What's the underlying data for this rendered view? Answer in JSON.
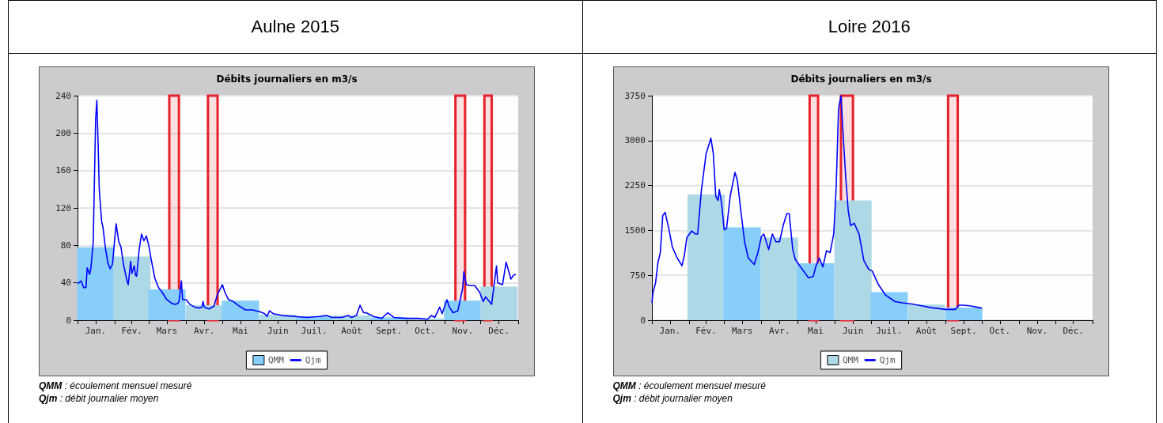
{
  "chart_data": [
    {
      "type": "bar",
      "title": "Aulne 2015",
      "subtitle": "Débits journaliers en m3/s",
      "xlim": [
        "2015-01-01",
        "2016-01-01"
      ],
      "xticks": [
        {
          "value": "2015-01-01",
          "label": null
        },
        {
          "value": "2015-01-16",
          "label": "Jan."
        },
        {
          "value": "2015-02-01",
          "label": null
        },
        {
          "value": "2015-02-15",
          "label": "Fév."
        },
        {
          "value": "2015-03-01",
          "label": null
        },
        {
          "value": "2015-03-16",
          "label": "Mars"
        },
        {
          "value": "2015-04-01",
          "label": null
        },
        {
          "value": "2015-04-16",
          "label": "Avr."
        },
        {
          "value": "2015-05-01",
          "label": null
        },
        {
          "value": "2015-05-16",
          "label": "Mai"
        },
        {
          "value": "2015-06-01",
          "label": null
        },
        {
          "value": "2015-06-16",
          "label": "Juin"
        },
        {
          "value": "2015-07-01",
          "label": null
        },
        {
          "value": "2015-07-16",
          "label": "Juil."
        },
        {
          "value": "2015-08-01",
          "label": null
        },
        {
          "value": "2015-08-16",
          "label": "Août"
        },
        {
          "value": "2015-09-01",
          "label": null
        },
        {
          "value": "2015-09-16",
          "label": "Sept."
        },
        {
          "value": "2015-10-01",
          "label": null
        },
        {
          "value": "2015-10-16",
          "label": "Oct."
        },
        {
          "value": "2015-11-01",
          "label": null
        },
        {
          "value": "2015-11-16",
          "label": "Nov."
        },
        {
          "value": "2015-12-01",
          "label": null
        },
        {
          "value": "2015-12-16",
          "label": "Déc."
        },
        {
          "value": "2016-01-01",
          "label": null
        }
      ],
      "ylim": [
        0,
        240
      ],
      "yticks": [
        0,
        40,
        80,
        120,
        160,
        200,
        240
      ],
      "grid": "y",
      "legend": "bottom",
      "marker": "none",
      "series": [
        {
          "name": "QMM",
          "x": [
            "2015-01-16",
            "2015-02-15",
            "2015-03-16",
            "2015-04-16",
            "2015-05-16",
            "2015-06-16",
            "2015-07-16",
            "2015-08-16",
            "2015-09-16",
            "2015-10-16",
            "2015-11-16",
            "2015-12-16"
          ],
          "colors": [
            "#87cefa",
            "#add8e6",
            "#87cefa",
            "#add8e6",
            "#87cefa",
            "#add8e6",
            "#87cefa",
            "#add8e6",
            "#87cefa",
            "#add8e6",
            "#87cefa",
            "#add8e6"
          ],
          "values": [
            78,
            68,
            33,
            16,
            21,
            6,
            4,
            5,
            3,
            2,
            21,
            36
          ]
        },
        {
          "type": "line",
          "name": "Qjm",
          "color": "#0000ff",
          "x": [
            "2015-01-01",
            "2015-01-04",
            "2015-01-06",
            "2015-01-08",
            "2015-01-09",
            "2015-01-11",
            "2015-01-12",
            "2015-01-14",
            "2015-01-15",
            "2015-01-16",
            "2015-01-17",
            "2015-01-18",
            "2015-01-19",
            "2015-01-21",
            "2015-01-22",
            "2015-01-24",
            "2015-01-26",
            "2015-01-28",
            "2015-01-30",
            "2015-02-01",
            "2015-02-02",
            "2015-02-04",
            "2015-02-06",
            "2015-02-08",
            "2015-02-11",
            "2015-02-12",
            "2015-02-14",
            "2015-02-15",
            "2015-02-17",
            "2015-02-18",
            "2015-02-19",
            "2015-02-21",
            "2015-02-23",
            "2015-02-25",
            "2015-02-27",
            "2015-03-01",
            "2015-03-03",
            "2015-03-06",
            "2015-03-09",
            "2015-03-12",
            "2015-03-16",
            "2015-03-20",
            "2015-03-23",
            "2015-03-25",
            "2015-03-26",
            "2015-03-28",
            "2015-03-29",
            "2015-04-01",
            "2015-04-04",
            "2015-04-08",
            "2015-04-12",
            "2015-04-14",
            "2015-04-15",
            "2015-04-16",
            "2015-04-20",
            "2015-04-24",
            "2015-04-27",
            "2015-05-01",
            "2015-05-03",
            "2015-05-06",
            "2015-05-10",
            "2015-05-14",
            "2015-05-20",
            "2015-05-26",
            "2015-06-01",
            "2015-06-05",
            "2015-06-07",
            "2015-06-09",
            "2015-06-12",
            "2015-06-20",
            "2015-06-30",
            "2015-07-10",
            "2015-07-20",
            "2015-07-26",
            "2015-07-31",
            "2015-08-08",
            "2015-08-13",
            "2015-08-16",
            "2015-08-20",
            "2015-08-23",
            "2015-08-26",
            "2015-08-28",
            "2015-09-03",
            "2015-09-10",
            "2015-09-15",
            "2015-09-20",
            "2015-09-30",
            "2015-10-10",
            "2015-10-18",
            "2015-10-21",
            "2015-10-24",
            "2015-10-28",
            "2015-10-30",
            "2015-11-03",
            "2015-11-05",
            "2015-11-08",
            "2015-11-12",
            "2015-11-16",
            "2015-11-17",
            "2015-11-19",
            "2015-11-22",
            "2015-11-26",
            "2015-11-30",
            "2015-12-03",
            "2015-12-05",
            "2015-12-08",
            "2015-12-10",
            "2015-12-14",
            "2015-12-15",
            "2015-12-19",
            "2015-12-22",
            "2015-12-24",
            "2015-12-26",
            "2015-12-28",
            "2015-12-30"
          ],
          "values": [
            39,
            42,
            35,
            35,
            56,
            49,
            55,
            83,
            150,
            215,
            235,
            190,
            140,
            105,
            100,
            78,
            62,
            55,
            60,
            90,
            103,
            85,
            78,
            60,
            42,
            38,
            63,
            50,
            58,
            48,
            47,
            75,
            92,
            85,
            90,
            80,
            65,
            45,
            35,
            30,
            22,
            18,
            17,
            18,
            20,
            42,
            22,
            22,
            17,
            14,
            13,
            14,
            20,
            14,
            12,
            15,
            28,
            38,
            30,
            22,
            20,
            16,
            11,
            11,
            9,
            7,
            4,
            10,
            7,
            5,
            4,
            3,
            4,
            5,
            3,
            3,
            5,
            3,
            5,
            16,
            8,
            8,
            4,
            2,
            8,
            3,
            2,
            2,
            1,
            5,
            3,
            14,
            7,
            22,
            14,
            8,
            10,
            34,
            52,
            38,
            37,
            37,
            30,
            20,
            25,
            20,
            17,
            58,
            40,
            38,
            62,
            53,
            44,
            48,
            49
          ]
        }
      ],
      "bands": [
        {
          "axis": "x",
          "from": "2015-03-18",
          "to": "2015-03-26",
          "color": "#e8202a"
        },
        {
          "axis": "x",
          "from": "2015-04-19",
          "to": "2015-04-27",
          "color": "#e8202a"
        },
        {
          "axis": "x",
          "from": "2015-11-10",
          "to": "2015-11-18",
          "color": "#e8202a"
        },
        {
          "axis": "x",
          "from": "2015-12-04",
          "to": "2015-12-10",
          "color": "#e8202a"
        }
      ],
      "annotations": [
        "QMM : écoulement mensuel mesuré",
        "Qjm : débit journalier moyen"
      ]
    },
    {
      "type": "bar",
      "title": "Loire 2016",
      "subtitle": "Débits journaliers en m3/s",
      "xlim": [
        "2016-01-01",
        "2017-01-01"
      ],
      "xticks": [
        {
          "value": "2016-01-01",
          "label": null
        },
        {
          "value": "2016-01-16",
          "label": "Jan."
        },
        {
          "value": "2016-02-01",
          "label": null
        },
        {
          "value": "2016-02-15",
          "label": "Fév."
        },
        {
          "value": "2016-03-01",
          "label": null
        },
        {
          "value": "2016-03-16",
          "label": "Mars"
        },
        {
          "value": "2016-04-01",
          "label": null
        },
        {
          "value": "2016-04-16",
          "label": "Avr."
        },
        {
          "value": "2016-05-01",
          "label": null
        },
        {
          "value": "2016-05-16",
          "label": "Mai"
        },
        {
          "value": "2016-06-01",
          "label": null
        },
        {
          "value": "2016-06-16",
          "label": "Juin"
        },
        {
          "value": "2016-07-01",
          "label": null
        },
        {
          "value": "2016-07-16",
          "label": "Juil."
        },
        {
          "value": "2016-08-01",
          "label": null
        },
        {
          "value": "2016-08-16",
          "label": "Août"
        },
        {
          "value": "2016-09-01",
          "label": null
        },
        {
          "value": "2016-09-16",
          "label": "Sept."
        },
        {
          "value": "2016-10-01",
          "label": null
        },
        {
          "value": "2016-10-16",
          "label": "Oct."
        },
        {
          "value": "2016-11-01",
          "label": null
        },
        {
          "value": "2016-11-16",
          "label": "Nov."
        },
        {
          "value": "2016-12-01",
          "label": null
        },
        {
          "value": "2016-12-16",
          "label": "Déc."
        },
        {
          "value": "2017-01-01",
          "label": null
        }
      ],
      "ylim": [
        0,
        3750
      ],
      "yticks": [
        0,
        750,
        1500,
        2250,
        3000,
        3750
      ],
      "grid": "y",
      "legend": "bottom",
      "marker": "none",
      "series": [
        {
          "name": "QMM",
          "x": [
            "2016-02-15",
            "2016-03-16",
            "2016-04-16",
            "2016-05-16",
            "2016-06-16",
            "2016-07-16",
            "2016-08-16",
            "2016-09-16"
          ],
          "colors": [
            "#add8e6",
            "#87cefa",
            "#add8e6",
            "#87cefa",
            "#add8e6",
            "#87cefa",
            "#add8e6",
            "#87cefa"
          ],
          "values": [
            2100,
            1550,
            1380,
            950,
            2000,
            470,
            260,
            210
          ]
        },
        {
          "type": "line",
          "name": "Qjm",
          "color": "#0000ff",
          "x": [
            "2016-01-01",
            "2016-01-02",
            "2016-01-04",
            "2016-01-06",
            "2016-01-08",
            "2016-01-10",
            "2016-01-12",
            "2016-01-15",
            "2016-01-18",
            "2016-01-22",
            "2016-01-26",
            "2016-01-28",
            "2016-01-30",
            "2016-02-03",
            "2016-02-06",
            "2016-02-08",
            "2016-02-11",
            "2016-02-15",
            "2016-02-19",
            "2016-02-21",
            "2016-02-23",
            "2016-02-25",
            "2016-02-26",
            "2016-02-28",
            "2016-03-01",
            "2016-03-03",
            "2016-03-06",
            "2016-03-10",
            "2016-03-12",
            "2016-03-15",
            "2016-03-18",
            "2016-03-21",
            "2016-03-26",
            "2016-03-29",
            "2016-04-01",
            "2016-04-03",
            "2016-04-07",
            "2016-04-10",
            "2016-04-13",
            "2016-04-16",
            "2016-04-19",
            "2016-04-22",
            "2016-04-24",
            "2016-04-27",
            "2016-04-29",
            "2016-05-02",
            "2016-05-06",
            "2016-05-10",
            "2016-05-14",
            "2016-05-16",
            "2016-05-19",
            "2016-05-22",
            "2016-05-25",
            "2016-05-28",
            "2016-05-31",
            "2016-06-02",
            "2016-06-04",
            "2016-06-06",
            "2016-06-08",
            "2016-06-10",
            "2016-06-12",
            "2016-06-14",
            "2016-06-17",
            "2016-06-21",
            "2016-06-25",
            "2016-06-29",
            "2016-07-02",
            "2016-07-07",
            "2016-07-13",
            "2016-07-21",
            "2016-07-27",
            "2016-08-04",
            "2016-08-12",
            "2016-08-20",
            "2016-09-01",
            "2016-09-09",
            "2016-09-12",
            "2016-09-15",
            "2016-09-21",
            "2016-09-29",
            "2016-10-01"
          ],
          "values": [
            290,
            470,
            620,
            960,
            1130,
            1750,
            1800,
            1530,
            1220,
            1040,
            910,
            1090,
            1380,
            1490,
            1440,
            1440,
            2150,
            2780,
            3040,
            2780,
            2070,
            2000,
            2180,
            1930,
            1510,
            1530,
            2070,
            2470,
            2330,
            1800,
            1310,
            1040,
            930,
            1130,
            1400,
            1440,
            1180,
            1440,
            1310,
            1310,
            1580,
            1780,
            1780,
            1180,
            1020,
            930,
            820,
            710,
            730,
            890,
            1040,
            890,
            1160,
            1130,
            1440,
            2200,
            3530,
            3750,
            3040,
            2380,
            1840,
            1580,
            1620,
            1440,
            1000,
            850,
            820,
            600,
            420,
            310,
            290,
            270,
            240,
            210,
            180,
            180,
            250,
            250,
            240,
            210,
            200
          ]
        }
      ],
      "bands": [
        {
          "axis": "x",
          "from": "2016-05-11",
          "to": "2016-05-18",
          "color": "#e8202a"
        },
        {
          "axis": "x",
          "from": "2016-06-06",
          "to": "2016-06-16",
          "color": "#e8202a"
        },
        {
          "axis": "x",
          "from": "2016-09-03",
          "to": "2016-09-11",
          "color": "#e8202a"
        }
      ],
      "annotations": [
        "QMM : écoulement mensuel mesuré",
        "Qjm : débit journalier moyen"
      ]
    }
  ]
}
